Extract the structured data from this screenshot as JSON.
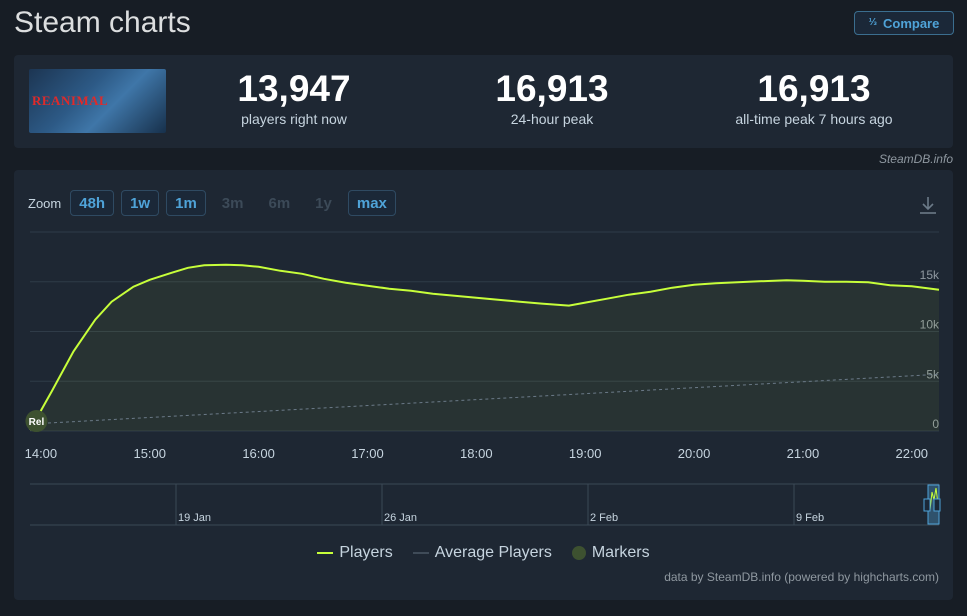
{
  "page": {
    "title": "Steam charts"
  },
  "compare": {
    "label": "Compare",
    "icon": "compare-icon"
  },
  "game": {
    "thumbnail_text": "REANIMAL"
  },
  "stats": [
    {
      "value": "13,947",
      "label": "players right now"
    },
    {
      "value": "16,913",
      "label": "24-hour peak"
    },
    {
      "value": "16,913",
      "label": "all-time peak 7 hours ago"
    }
  ],
  "source_note": "SteamDB.info",
  "zoom": {
    "label": "Zoom",
    "options": [
      {
        "label": "48h",
        "enabled": true
      },
      {
        "label": "1w",
        "enabled": true
      },
      {
        "label": "1m",
        "enabled": true
      },
      {
        "label": "3m",
        "enabled": false
      },
      {
        "label": "6m",
        "enabled": false
      },
      {
        "label": "1y",
        "enabled": false
      },
      {
        "label": "max",
        "enabled": true
      }
    ]
  },
  "legend": {
    "players": "Players",
    "average": "Average Players",
    "markers": "Markers"
  },
  "credit": "data by SteamDB.info (powered by highcharts.com)",
  "colors": {
    "players_line": "#d2e885",
    "players_line_bright": "#c7ff3a",
    "average_line": "#6b7a88",
    "marker": "#3d5130",
    "grid": "#2f3b48",
    "accent": "#4fa3d8"
  },
  "chart_data": {
    "type": "line",
    "x_tick_labels": [
      "14:00",
      "15:00",
      "16:00",
      "17:00",
      "18:00",
      "19:00",
      "20:00",
      "21:00",
      "22:00"
    ],
    "y_tick_labels": [
      "0",
      "5k",
      "10k",
      "15k"
    ],
    "ylim": [
      0,
      20000
    ],
    "xlim_hours": [
      13.9,
      22.25
    ],
    "series": [
      {
        "name": "Players",
        "x": [
          13.9,
          14.1,
          14.3,
          14.5,
          14.65,
          14.85,
          15.0,
          15.2,
          15.35,
          15.5,
          15.7,
          15.85,
          16.0,
          16.2,
          16.4,
          16.6,
          16.8,
          17.0,
          17.2,
          17.4,
          17.6,
          17.8,
          18.0,
          18.2,
          18.4,
          18.6,
          18.85,
          19.0,
          19.2,
          19.4,
          19.6,
          19.8,
          20.0,
          20.2,
          20.4,
          20.6,
          20.85,
          21.0,
          21.2,
          21.4,
          21.6,
          21.8,
          22.0,
          22.25
        ],
        "y": [
          100,
          4000,
          8000,
          11200,
          13000,
          14500,
          15200,
          15900,
          16400,
          16650,
          16700,
          16650,
          16500,
          16100,
          15800,
          15300,
          14900,
          14600,
          14300,
          14100,
          13800,
          13600,
          13400,
          13200,
          13000,
          12800,
          12600,
          12900,
          13300,
          13700,
          14000,
          14400,
          14700,
          14850,
          14950,
          15050,
          15150,
          15100,
          15000,
          15000,
          14950,
          14650,
          14550,
          14200
        ]
      },
      {
        "name": "Average Players",
        "x": [
          13.9,
          22.25
        ],
        "y": [
          700,
          5700
        ]
      }
    ],
    "markers": [
      {
        "x": 13.95,
        "label": "Rel"
      }
    ],
    "navigator_labels": [
      "19 Jan",
      "26 Jan",
      "2 Feb",
      "9 Feb"
    ],
    "grid": true,
    "legend_position": "bottom-center"
  }
}
